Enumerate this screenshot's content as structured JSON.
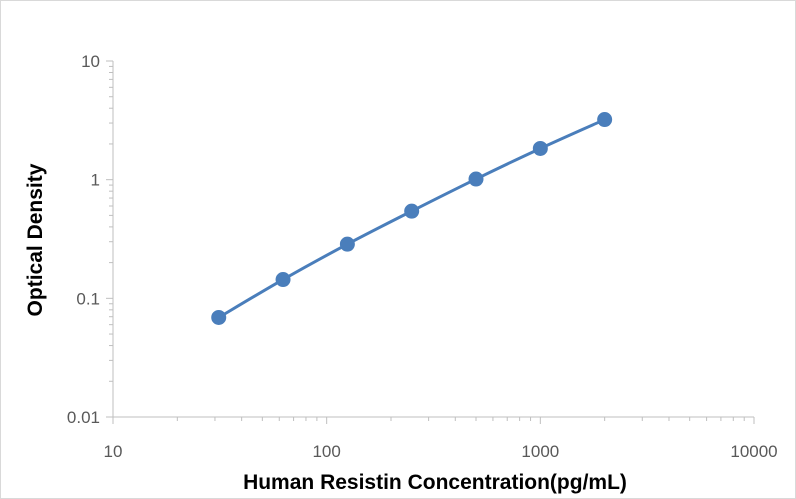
{
  "chart_data": {
    "type": "scatter",
    "title": "",
    "xlabel": "Human Resistin Concentration(pg/mL)",
    "ylabel": "Optical Density",
    "x_scale": "log",
    "y_scale": "log",
    "xlim": [
      10,
      10000
    ],
    "ylim": [
      0.01,
      10
    ],
    "x_ticks": [
      "10",
      "100",
      "1000",
      "10000"
    ],
    "y_ticks": [
      "0.01",
      "0.1",
      "1",
      "10"
    ],
    "grid": false,
    "legend": "none",
    "series": [
      {
        "x": [
          31.25,
          62.5,
          125,
          250,
          500,
          1000,
          2000
        ],
        "y": [
          0.069,
          0.144,
          0.286,
          0.543,
          1.012,
          1.832,
          3.21
        ],
        "marker": "circle",
        "line": "smooth",
        "color": "#4a7ebb"
      }
    ]
  }
}
